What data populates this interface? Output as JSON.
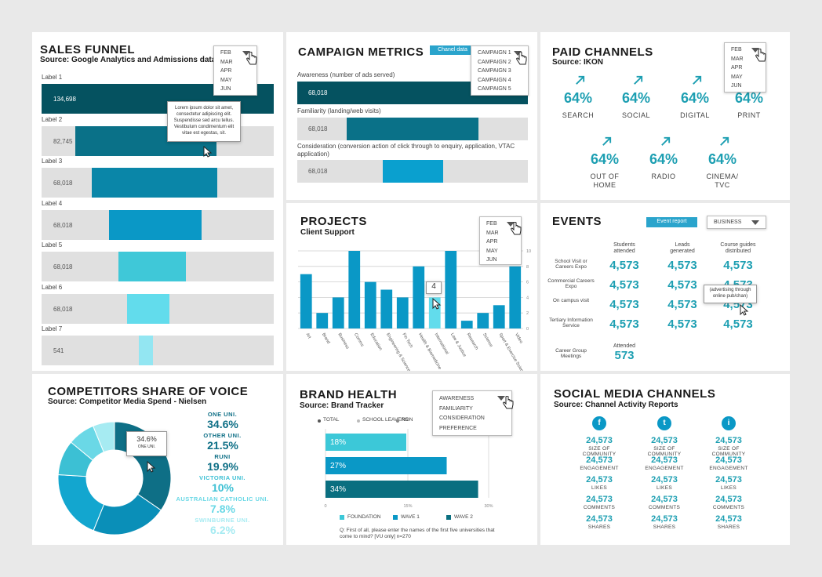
{
  "funnel": {
    "title": "SALES FUNNEL",
    "subtitle": "Source: Google Analytics and Admissions data",
    "months": [
      "FEB",
      "MAR",
      "APR",
      "MAY",
      "JUN"
    ],
    "rows": [
      {
        "label": "Label 1",
        "value": "134,698",
        "color": "#055260"
      },
      {
        "label": "Label 2",
        "value": "82,745",
        "color": "#0a7188"
      },
      {
        "label": "Label 3",
        "value": "68,018",
        "color": "#0a86a8"
      },
      {
        "label": "Label 4",
        "value": "68,018",
        "color": "#0a98c6"
      },
      {
        "label": "Label 5",
        "value": "68,018",
        "color": "#3fc8d8"
      },
      {
        "label": "Label 6",
        "value": "68,018",
        "color": "#62dcec"
      },
      {
        "label": "Label 7",
        "value": "541",
        "color": "#93e6f2"
      }
    ],
    "tooltip": "Lorem ipsum dolor sit amet, consectetur adipiscing elit. Suspendisse sed arcu tellus. Vestibulum condimentum elit vitae est egestas, sit."
  },
  "campaign": {
    "title": "CAMPAIGN METRICS",
    "button": "Chanel data",
    "options": [
      "CAMPAIGN 1",
      "CAMPAIGN 2",
      "CAMPAIGN 3",
      "CAMPAIGN 4",
      "CAMPAIGN 5"
    ],
    "rows": [
      {
        "label": "Awareness (number of ads served)",
        "value": "68,018"
      },
      {
        "label": "Familiarity (landing/web visits)",
        "value": "68,018"
      },
      {
        "label": "Consideration (conversion action of click through to enquiry, application, VTAC application)",
        "value": "68,018"
      }
    ]
  },
  "paid": {
    "title": "PAID CHANNELS",
    "subtitle": "Source: IKON",
    "months": [
      "FEB",
      "MAR",
      "APR",
      "MAY",
      "JUN"
    ],
    "items": [
      {
        "value": "64%",
        "label": "SEARCH"
      },
      {
        "value": "64%",
        "label": "SOCIAL"
      },
      {
        "value": "64%",
        "label": "DIGITAL"
      },
      {
        "value": "64%",
        "label": "PRINT"
      },
      {
        "value": "64%",
        "label": "OUT OF HOME"
      },
      {
        "value": "64%",
        "label": "RADIO"
      },
      {
        "value": "64%",
        "label": "CINEMA/ TVC"
      }
    ]
  },
  "projects": {
    "title": "PROJECTS",
    "subtitle": "Client Support",
    "months": [
      "FEB",
      "MAR",
      "APR",
      "MAY",
      "JUN"
    ],
    "tooltip_value": "4",
    "chart_data": {
      "type": "bar",
      "categories": [
        "Art",
        "Brand",
        "Business",
        "Comms",
        "Education",
        "Engineering & Science",
        "Fin Tech",
        "Health & Biomedicine",
        "International",
        "Law & Justice",
        "Research",
        "Science",
        "Sport & Exercise Science",
        "Video"
      ],
      "values": [
        7,
        2,
        4,
        10,
        6,
        5,
        4,
        8,
        4,
        10,
        1,
        2,
        3,
        8
      ],
      "highlight_index": 8,
      "yticks": [
        0,
        2,
        4,
        6,
        8,
        10
      ],
      "ylim": [
        0,
        10
      ]
    }
  },
  "events": {
    "title": "EVENTS",
    "button": "Event report",
    "select": "BUSINESS",
    "headers": [
      "Students attended",
      "Leads generated",
      "Course guides distributed"
    ],
    "rows": [
      {
        "label": "School Visit or Careers Expo",
        "values": [
          "4,573",
          "4,573",
          "4,573"
        ]
      },
      {
        "label": "Commercial Careers Expo",
        "values": [
          "4,573",
          "4,573",
          "4,573"
        ]
      },
      {
        "label": "On campus visit",
        "values": [
          "4,573",
          "4,573",
          "4,573"
        ]
      },
      {
        "label": "Tertiary Information Service",
        "values": [
          "4,573",
          "4,573",
          "4,573"
        ]
      }
    ],
    "last_row": {
      "label": "Career Group Meetings",
      "header": "Attended",
      "value": "573"
    },
    "tooltip": "(advertising through online pub/chan)"
  },
  "competitors": {
    "title": "COMPETITORS SHARE OF VOICE",
    "subtitle": "Source: Competitor Media Spend - Nielsen",
    "tooltip_value": "34.6%",
    "tooltip_label": "ONE UNI.",
    "chart_data": {
      "type": "pie",
      "labels": [
        "ONE UNI.",
        "OTHER UNI.",
        "RUNI",
        "VICTORIA UNI.",
        "AUSTRALIAN CATHOLIC UNI.",
        "SWINBURNE UNI."
      ],
      "values": [
        34.6,
        21.5,
        19.9,
        10,
        7.8,
        6.2
      ],
      "display": [
        "34.6%",
        "21.5%",
        "19.9%",
        "10%",
        "7.8%",
        "6.2%"
      ],
      "colors": [
        "#0e6f86",
        "#0a8fb8",
        "#13a6cf",
        "#3cc0d4",
        "#6ad8e6",
        "#a6ebf2"
      ]
    }
  },
  "brand": {
    "title": "BRAND HEALTH",
    "subtitle": "Source: Brand Tracker",
    "options": [
      "AWARENESS",
      "FAMILIARITY",
      "CONSIDERATION",
      "PREFERENCE"
    ],
    "legend_top": [
      "TOTAL",
      "SCHOOL LEAVERS",
      "NON"
    ],
    "legend_bottom": [
      "FOUNDATION",
      "WAVE 1",
      "WAVE 2"
    ],
    "footnote": "Q: First of all, please enter the names of the first five universities that come to mind? [VU only] n=270",
    "chart_data": {
      "type": "bar",
      "orientation": "horizontal",
      "categories": [
        "FOUNDATION",
        "WAVE 1",
        "WAVE 2"
      ],
      "values": [
        18,
        27,
        34
      ],
      "display": [
        "18%",
        "27%",
        "34%"
      ],
      "xticks": [
        "0",
        "15%",
        "30%"
      ],
      "xlim": [
        0,
        40
      ],
      "colors": [
        "#3cc8d8",
        "#0a98c6",
        "#0a6f80"
      ]
    }
  },
  "social": {
    "title": "SOCIAL MEDIA CHANNELS",
    "subtitle": "Source: Channel Activity Reports",
    "channels": [
      {
        "icon": "f",
        "name": "facebook"
      },
      {
        "icon": "t",
        "name": "twitter"
      },
      {
        "icon": "i",
        "name": "instagram"
      }
    ],
    "metrics": [
      {
        "value": "24,573",
        "label": "SIZE OF COMMUNITY"
      },
      {
        "value": "24,573",
        "label": "ENGAGEMENT"
      },
      {
        "value": "24,573",
        "label": "LIKES"
      },
      {
        "value": "24,573",
        "label": "COMMENTS"
      },
      {
        "value": "24,573",
        "label": "SHARES"
      }
    ]
  }
}
